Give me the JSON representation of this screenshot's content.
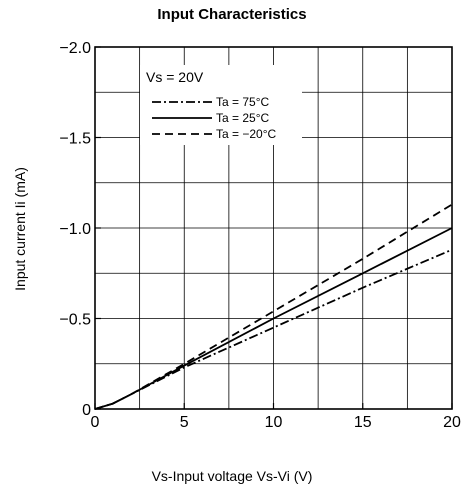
{
  "chart_data": {
    "type": "line",
    "title": "Input Characteristics",
    "xlabel": "Vs-Input voltage  Vs-Vi (V)",
    "ylabel": "Input current  Ii (mA)",
    "xlim": [
      0,
      20
    ],
    "ylim": [
      0,
      -2.0
    ],
    "x_ticks": [
      0,
      5,
      10,
      15,
      20
    ],
    "x_tick_labels": [
      "0",
      "5",
      "10",
      "15",
      "20"
    ],
    "y_ticks": [
      0,
      -0.5,
      -1.0,
      -1.5,
      -2.0
    ],
    "y_tick_labels": [
      "0",
      "−0.5",
      "−1.0",
      "−1.5",
      "−2.0"
    ],
    "grid": true,
    "legend_position": "top-left",
    "legend_title": "Vs = 20V",
    "series": [
      {
        "name": "Ta = 75°C",
        "style": "dash-dot",
        "x": [
          0,
          1,
          2,
          5,
          10,
          15,
          20
        ],
        "y": [
          0,
          -0.03,
          -0.08,
          -0.23,
          -0.45,
          -0.67,
          -0.88
        ]
      },
      {
        "name": "Ta = 25°C",
        "style": "solid",
        "x": [
          0,
          1,
          2,
          5,
          10,
          15,
          20
        ],
        "y": [
          0,
          -0.03,
          -0.08,
          -0.24,
          -0.5,
          -0.75,
          -1.0
        ]
      },
      {
        "name": "Ta = −20°C",
        "style": "dashed",
        "x": [
          0,
          1,
          2,
          5,
          10,
          15,
          20
        ],
        "y": [
          0,
          -0.03,
          -0.08,
          -0.25,
          -0.54,
          -0.83,
          -1.13
        ]
      }
    ]
  }
}
